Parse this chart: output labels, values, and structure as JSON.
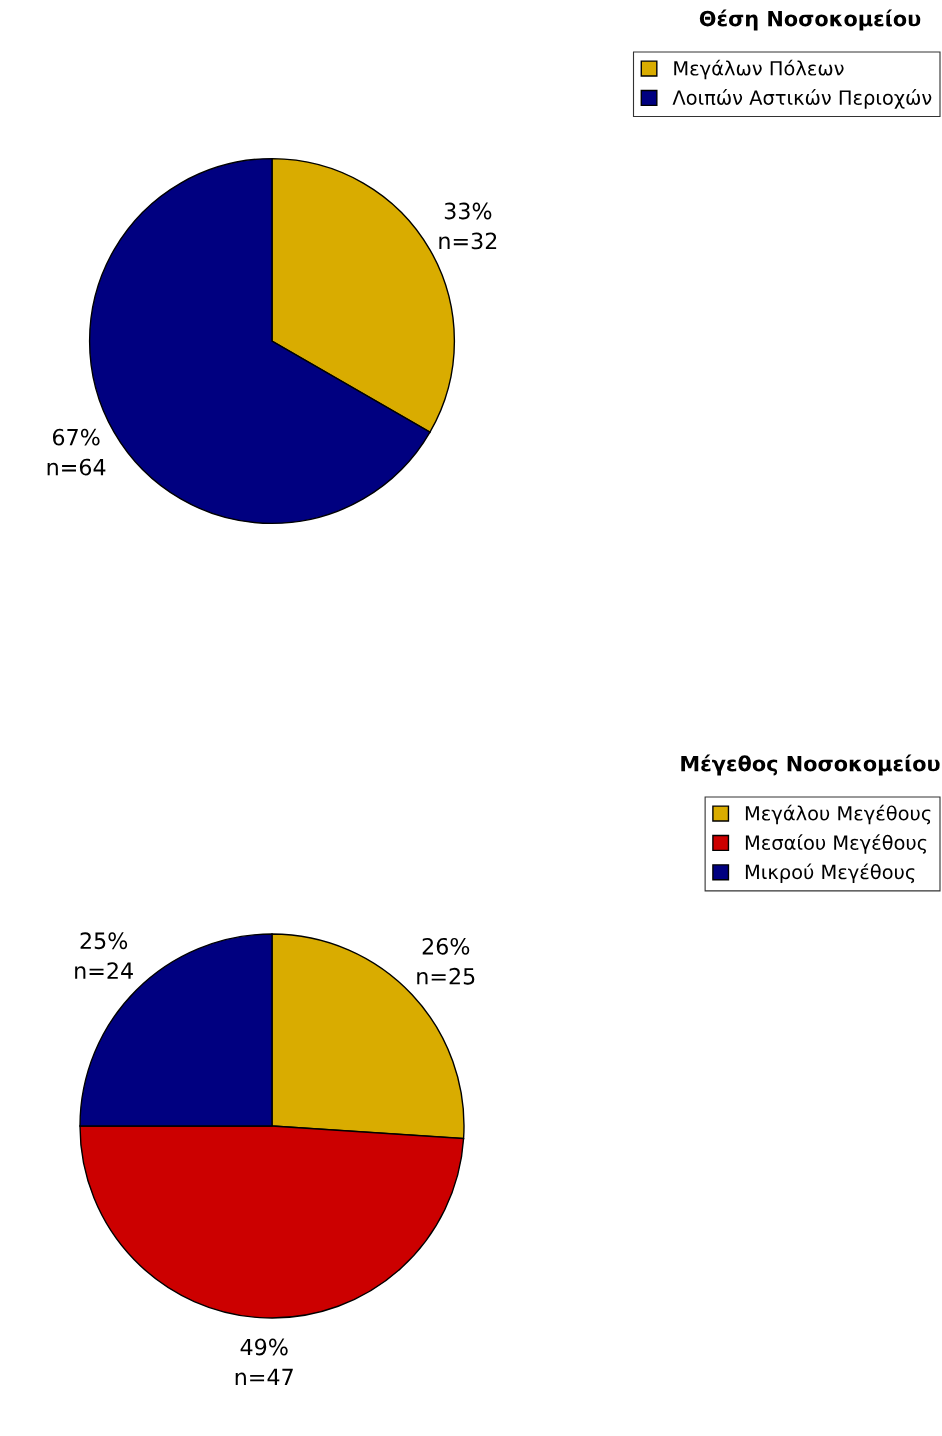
{
  "chart_data": [
    {
      "type": "pie",
      "title": "Θέση Νοσοκομείου",
      "categories": [
        "Μεγάλων Πόλεων",
        "Λοιπών Αστικών Περιοχών"
      ],
      "values": [
        32,
        64
      ],
      "colors": [
        "#d9ac00",
        "#000080"
      ],
      "value_labels": [
        "33%\nn=32",
        "67%\nn=64"
      ],
      "legend": "top right"
    },
    {
      "type": "pie",
      "title": "Μέγεθος Νοσοκομείου",
      "categories": [
        "Μεγάλου Μεγέθους",
        "Μεσαίου Μεγέθους",
        "Μικρού Μεγέθους"
      ],
      "values": [
        25,
        47,
        24
      ],
      "colors": [
        "#d9ac00",
        "#cc0000",
        "#000080"
      ],
      "value_labels": [
        "26%\nn=25",
        "49%\nn=47",
        "25%\nn=24"
      ],
      "legend": "top right"
    }
  ]
}
